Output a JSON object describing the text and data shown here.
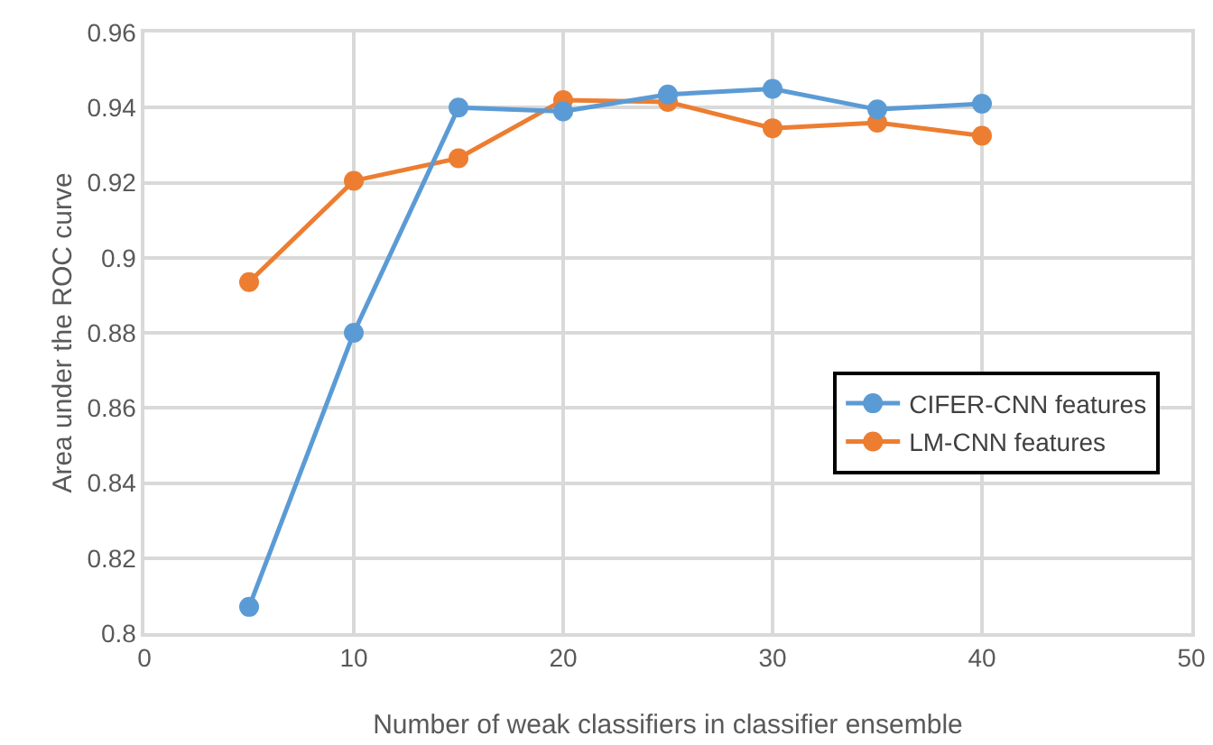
{
  "chart_data": {
    "type": "line",
    "xlabel": "Number of weak classifiers in classifier ensemble",
    "ylabel": "Area under the ROC curve",
    "x": [
      5,
      10,
      15,
      20,
      25,
      30,
      35,
      40
    ],
    "series": [
      {
        "name": "CIFER-CNN features",
        "color": "#5b9bd5",
        "values": [
          0.807,
          0.88,
          0.94,
          0.939,
          0.9435,
          0.945,
          0.9395,
          0.941
        ]
      },
      {
        "name": "LM-CNN features",
        "color": "#ed7d31",
        "values": [
          0.8935,
          0.9205,
          0.9265,
          0.942,
          0.9415,
          0.9345,
          0.936,
          0.9325
        ]
      }
    ],
    "xlim": [
      0,
      50
    ],
    "xticks": [
      0,
      10,
      20,
      30,
      40,
      50
    ],
    "ylim": [
      0.8,
      0.96
    ],
    "yticks": [
      0.8,
      0.82,
      0.84,
      0.86,
      0.88,
      0.9,
      0.92,
      0.94,
      0.96
    ],
    "grid": true,
    "legend": "right",
    "marker": "circle",
    "line_style": "solid"
  }
}
